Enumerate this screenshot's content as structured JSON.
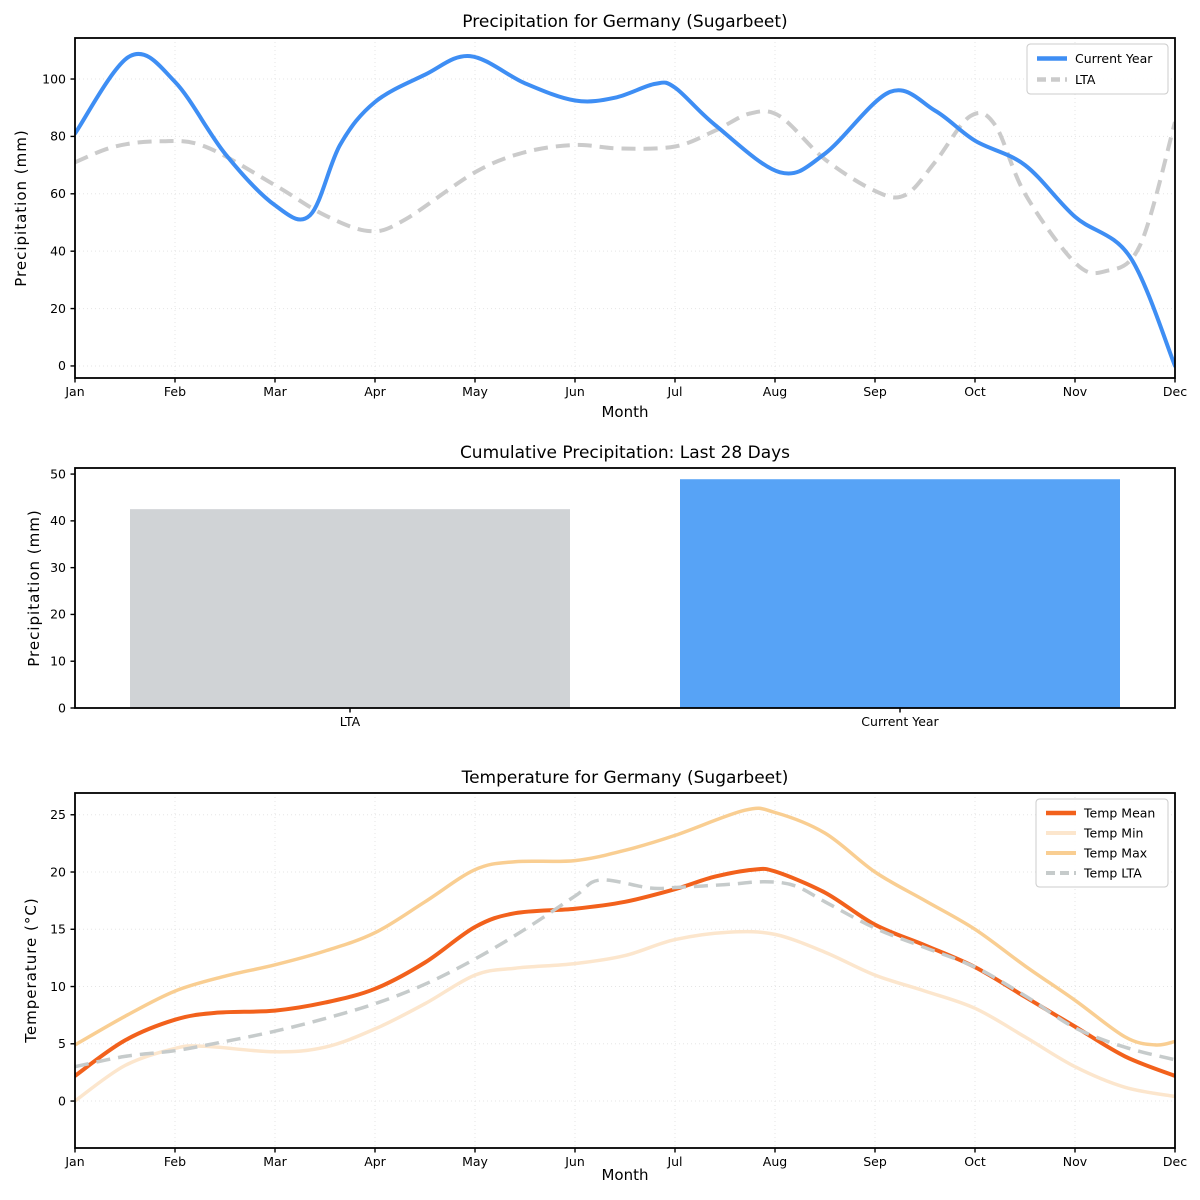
{
  "chart_data": [
    {
      "id": "precipitation-line",
      "type": "line",
      "title": "Precipitation for Germany (Sugarbeet)",
      "xlabel": "Month",
      "ylabel": "Precipitation (mm)",
      "x_tick_labels": [
        "Jan",
        "Feb",
        "Mar",
        "Apr",
        "May",
        "Jun",
        "Jul",
        "Aug",
        "Sep",
        "Oct",
        "Nov",
        "Dec"
      ],
      "y_tick_labels": [
        0,
        20,
        40,
        60,
        80,
        100
      ],
      "xlim": [
        0,
        11
      ],
      "ylim": [
        -4.2,
        114.3
      ],
      "grid": true,
      "legend": {
        "position": "upper right",
        "entries": [
          "Current Year",
          "LTA"
        ]
      },
      "series": [
        {
          "name": "Current Year",
          "color": "#3E8EF4",
          "line_width": 4,
          "style": "solid",
          "z": 2,
          "points": [
            [
              0,
              81
            ],
            [
              0.55,
              108
            ],
            [
              1,
              99
            ],
            [
              1.5,
              74
            ],
            [
              2,
              56
            ],
            [
              2.35,
              52.5
            ],
            [
              2.65,
              77
            ],
            [
              3,
              92
            ],
            [
              3.5,
              101.5
            ],
            [
              3.95,
              108
            ],
            [
              4.5,
              98.5
            ],
            [
              5,
              92.5
            ],
            [
              5.4,
              93.5
            ],
            [
              5.8,
              98.3
            ],
            [
              6,
              97
            ],
            [
              6.4,
              84
            ],
            [
              7.05,
              67.5
            ],
            [
              7.5,
              74
            ],
            [
              8.15,
              95.5
            ],
            [
              8.6,
              89
            ],
            [
              9,
              78.5
            ],
            [
              9.5,
              70
            ],
            [
              10,
              52
            ],
            [
              10.55,
              38
            ],
            [
              11,
              0
            ]
          ]
        },
        {
          "name": "LTA",
          "color": "#CBCBCB",
          "line_width": 4,
          "style": "dashed",
          "z": 1,
          "points": [
            [
              0,
              71
            ],
            [
              0.4,
              76.5
            ],
            [
              0.85,
              78.3
            ],
            [
              1.3,
              76.5
            ],
            [
              2,
              63
            ],
            [
              2.5,
              52.5
            ],
            [
              2.95,
              47
            ],
            [
              3.3,
              51
            ],
            [
              4,
              67.5
            ],
            [
              4.5,
              74.5
            ],
            [
              5,
              77
            ],
            [
              5.45,
              75.8
            ],
            [
              6,
              76.5
            ],
            [
              6.4,
              82
            ],
            [
              6.75,
              88
            ],
            [
              7.05,
              87
            ],
            [
              7.5,
              72
            ],
            [
              8,
              61
            ],
            [
              8.3,
              59.5
            ],
            [
              8.6,
              71
            ],
            [
              8.95,
              87
            ],
            [
              9.2,
              84
            ],
            [
              9.5,
              60
            ],
            [
              10,
              36
            ],
            [
              10.3,
              33
            ],
            [
              10.65,
              42
            ],
            [
              11,
              85
            ]
          ]
        }
      ]
    },
    {
      "id": "precipitation-bar",
      "type": "bar",
      "title": "Cumulative Precipitation: Last 28 Days",
      "ylabel": "Precipitation (mm)",
      "categories": [
        "LTA",
        "Current Year"
      ],
      "values": [
        42.5,
        48.9
      ],
      "bar_colors": [
        "#D0D3D6",
        "#57A3F6"
      ],
      "y_tick_labels": [
        0,
        10,
        20,
        30,
        40,
        50
      ],
      "ylim": [
        0,
        51.3
      ],
      "grid": false
    },
    {
      "id": "temperature-line",
      "type": "line",
      "title": "Temperature for Germany (Sugarbeet)",
      "xlabel": "Month",
      "ylabel": "Temperature (°C)",
      "x_tick_labels": [
        "Jan",
        "Feb",
        "Mar",
        "Apr",
        "May",
        "Jun",
        "Jul",
        "Aug",
        "Sep",
        "Oct",
        "Nov",
        "Dec"
      ],
      "y_tick_labels": [
        0,
        5,
        10,
        15,
        20,
        25
      ],
      "xlim": [
        0,
        11
      ],
      "ylim": [
        -4.1,
        26.9
      ],
      "grid": true,
      "legend": {
        "position": "upper right",
        "entries": [
          "Temp Mean",
          "Temp Min",
          "Temp Max",
          "Temp LTA"
        ]
      },
      "series": [
        {
          "name": "Temp Mean",
          "color": "#F2611C",
          "line_width": 4,
          "style": "solid",
          "z": 3,
          "points": [
            [
              0,
              2.2
            ],
            [
              0.5,
              5.3
            ],
            [
              1,
              7.1
            ],
            [
              1.4,
              7.7
            ],
            [
              2,
              7.9
            ],
            [
              2.5,
              8.6
            ],
            [
              3,
              9.8
            ],
            [
              3.5,
              12.1
            ],
            [
              4,
              15.2
            ],
            [
              4.4,
              16.4
            ],
            [
              5,
              16.8
            ],
            [
              5.5,
              17.4
            ],
            [
              6,
              18.5
            ],
            [
              6.4,
              19.6
            ],
            [
              6.78,
              20.2
            ],
            [
              7,
              20.05
            ],
            [
              7.5,
              18.2
            ],
            [
              8,
              15.4
            ],
            [
              8.5,
              13.6
            ],
            [
              9,
              11.7
            ],
            [
              9.5,
              9.1
            ],
            [
              10,
              6.5
            ],
            [
              10.5,
              3.9
            ],
            [
              11,
              2.2
            ]
          ]
        },
        {
          "name": "Temp Min",
          "color": "#FCE6CD",
          "line_width": 3.5,
          "style": "solid",
          "z": 1,
          "points": [
            [
              0,
              0
            ],
            [
              0.5,
              3.1
            ],
            [
              1,
              4.6
            ],
            [
              1.3,
              4.78
            ],
            [
              2,
              4.3
            ],
            [
              2.5,
              4.7
            ],
            [
              3,
              6.3
            ],
            [
              3.5,
              8.5
            ],
            [
              4,
              11
            ],
            [
              4.4,
              11.6
            ],
            [
              5,
              12
            ],
            [
              5.5,
              12.7
            ],
            [
              6,
              14.1
            ],
            [
              6.55,
              14.75
            ],
            [
              7,
              14.55
            ],
            [
              7.5,
              13
            ],
            [
              8,
              11
            ],
            [
              8.5,
              9.6
            ],
            [
              9,
              8.1
            ],
            [
              9.5,
              5.6
            ],
            [
              10,
              3
            ],
            [
              10.5,
              1.2
            ],
            [
              11,
              0.4
            ]
          ]
        },
        {
          "name": "Temp Max",
          "color": "#F9CE92",
          "line_width": 3.5,
          "style": "solid",
          "z": 2,
          "points": [
            [
              0,
              4.9
            ],
            [
              0.5,
              7.4
            ],
            [
              1,
              9.6
            ],
            [
              1.5,
              10.9
            ],
            [
              2,
              11.9
            ],
            [
              2.5,
              13.1
            ],
            [
              3,
              14.7
            ],
            [
              3.5,
              17.4
            ],
            [
              4,
              20.2
            ],
            [
              4.4,
              20.9
            ],
            [
              5,
              21
            ],
            [
              5.5,
              21.9
            ],
            [
              6,
              23.2
            ],
            [
              6.7,
              25.4
            ],
            [
              7,
              25.2
            ],
            [
              7.5,
              23.4
            ],
            [
              8,
              20
            ],
            [
              8.5,
              17.5
            ],
            [
              9,
              15
            ],
            [
              9.5,
              11.8
            ],
            [
              10,
              8.8
            ],
            [
              10.5,
              5.6
            ],
            [
              10.8,
              4.9
            ],
            [
              11,
              5.2
            ]
          ]
        },
        {
          "name": "Temp LTA",
          "color": "#C6CBCB",
          "line_width": 3.5,
          "style": "dashed",
          "z": 4,
          "points": [
            [
              0,
              3
            ],
            [
              0.5,
              3.9
            ],
            [
              1,
              4.4
            ],
            [
              1.5,
              5.2
            ],
            [
              2,
              6.1
            ],
            [
              2.5,
              7.2
            ],
            [
              3,
              8.5
            ],
            [
              3.5,
              10.2
            ],
            [
              4,
              12.4
            ],
            [
              4.5,
              15
            ],
            [
              5,
              17.9
            ],
            [
              5.25,
              19.3
            ],
            [
              5.75,
              18.6
            ],
            [
              6,
              18.65
            ],
            [
              6.5,
              18.9
            ],
            [
              6.9,
              19.15
            ],
            [
              7.2,
              18.8
            ],
            [
              7.5,
              17.4
            ],
            [
              8,
              15.1
            ],
            [
              8.5,
              13.4
            ],
            [
              9,
              11.7
            ],
            [
              9.5,
              9.2
            ],
            [
              10,
              6.4
            ],
            [
              10.5,
              4.7
            ],
            [
              11,
              3.6
            ]
          ]
        }
      ]
    }
  ],
  "style": {
    "grid_color": "#E5E5E5",
    "spine_color": "#000000",
    "legend_border": "#CCCCCC",
    "background": "#FFFFFF"
  }
}
